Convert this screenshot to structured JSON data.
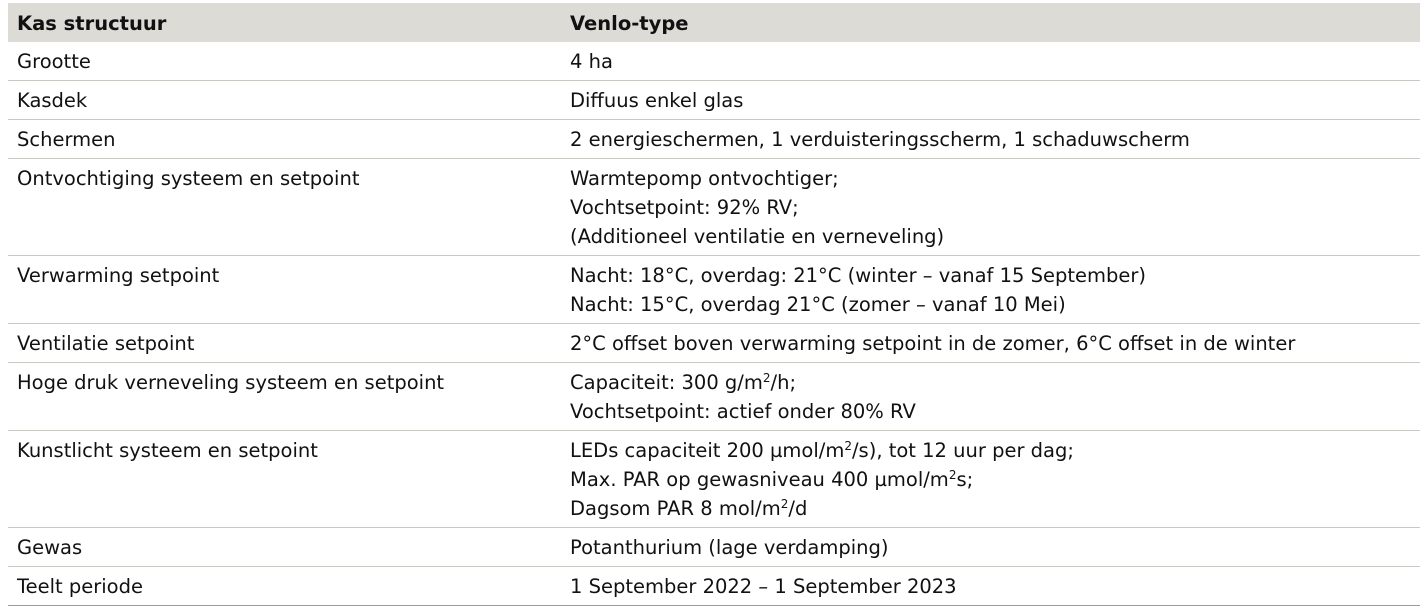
{
  "header": {
    "col1": "Kas structuur",
    "col2": "Venlo-type"
  },
  "rows": [
    {
      "label": "Grootte",
      "lines": [
        "4 ha"
      ]
    },
    {
      "label": "Kasdek",
      "lines": [
        "Diffuus enkel glas"
      ]
    },
    {
      "label": "Schermen",
      "lines": [
        "2 energieschermen, 1 verduisteringsscherm, 1 schaduwscherm"
      ]
    },
    {
      "label": "Ontvochtiging systeem en setpoint",
      "lines": [
        "Warmtepomp ontvochtiger;",
        "Vochtsetpoint: 92% RV;",
        "(Additioneel ventilatie en verneveling)"
      ]
    },
    {
      "label": "Verwarming setpoint",
      "lines": [
        "Nacht: 18°C, overdag: 21°C (winter – vanaf 15 September)",
        "Nacht: 15°C, overdag 21°C (zomer – vanaf 10 Mei)"
      ]
    },
    {
      "label": "Ventilatie setpoint",
      "lines": [
        "2°C offset boven verwarming setpoint in de zomer, 6°C offset in de winter"
      ]
    },
    {
      "label": "Hoge druk verneveling systeem en setpoint",
      "lines": [
        [
          "Capaciteit: 300 g/m",
          "2",
          "/h;"
        ],
        "Vochtsetpoint: actief onder 80% RV"
      ]
    },
    {
      "label": "Kunstlicht systeem en setpoint",
      "lines": [
        [
          "LEDs capaciteit 200 µmol/m",
          "2",
          "/s), tot 12 uur per dag;"
        ],
        [
          "Max. PAR op gewasniveau 400 µmol/m",
          "2",
          "s;"
        ],
        [
          "Dagsom PAR 8 mol/m",
          "2",
          "/d"
        ]
      ]
    },
    {
      "label": "Gewas",
      "lines": [
        "Potanthurium (lage verdamping)"
      ]
    },
    {
      "label": "Teelt periode",
      "lines": [
        "1 September 2022 – 1 September 2023"
      ]
    }
  ]
}
